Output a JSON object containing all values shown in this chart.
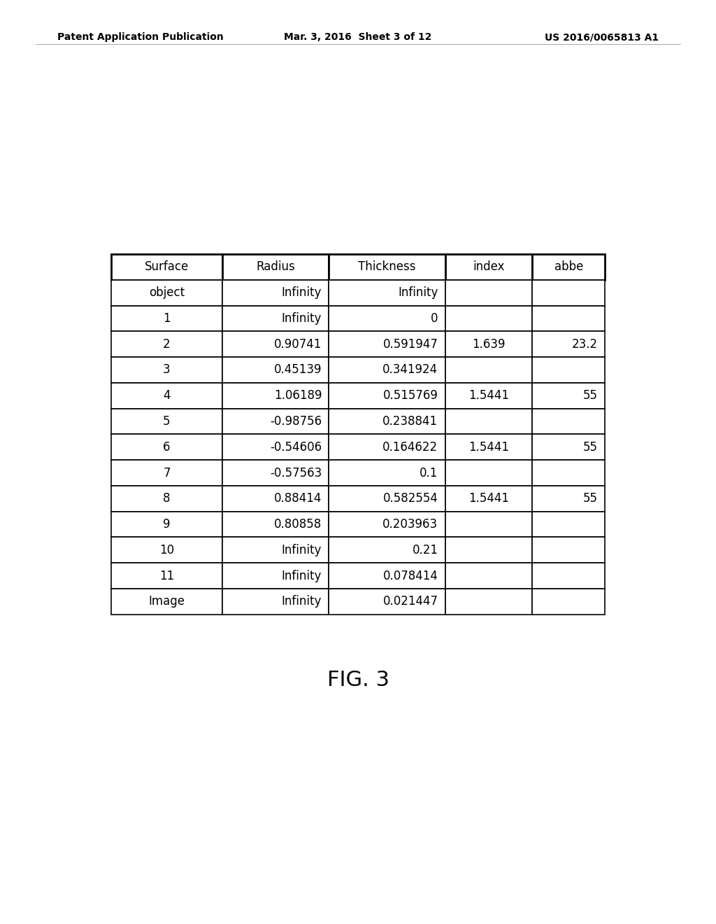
{
  "header_text_left": "Patent Application Publication",
  "header_text_mid": "Mar. 3, 2016  Sheet 3 of 12",
  "header_text_right": "US 2016/0065813 A1",
  "figure_label": "FIG. 3",
  "columns": [
    "Surface",
    "Radius",
    "Thickness",
    "index",
    "abbe"
  ],
  "rows": [
    [
      "object",
      "Infinity",
      "Infinity",
      "",
      ""
    ],
    [
      "1",
      "Infinity",
      "0",
      "",
      ""
    ],
    [
      "2",
      "0.90741",
      "0.591947",
      "1.639",
      "23.2"
    ],
    [
      "3",
      "0.45139",
      "0.341924",
      "",
      ""
    ],
    [
      "4",
      "1.06189",
      "0.515769",
      "1.5441",
      "55"
    ],
    [
      "5",
      "-0.98756",
      "0.238841",
      "",
      ""
    ],
    [
      "6",
      "-0.54606",
      "0.164622",
      "1.5441",
      "55"
    ],
    [
      "7",
      "-0.57563",
      "0.1",
      "",
      ""
    ],
    [
      "8",
      "0.88414",
      "0.582554",
      "1.5441",
      "55"
    ],
    [
      "9",
      "0.80858",
      "0.203963",
      "",
      ""
    ],
    [
      "10",
      "Infinity",
      "0.21",
      "",
      ""
    ],
    [
      "11",
      "Infinity",
      "0.078414",
      "",
      ""
    ],
    [
      "Image",
      "Infinity",
      "0.021447",
      "",
      ""
    ]
  ],
  "col_aligns": [
    "center",
    "right",
    "right",
    "center",
    "right"
  ],
  "bg_color": "#ffffff",
  "table_border_color": "#000000",
  "text_color": "#000000",
  "header_fontsize": 10,
  "table_fontsize": 12,
  "fig_label_fontsize": 22
}
